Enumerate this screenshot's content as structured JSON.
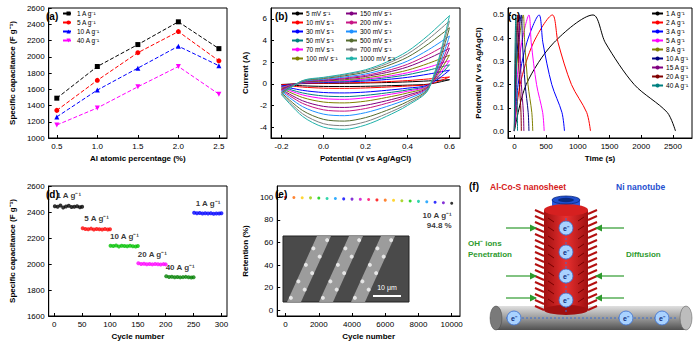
{
  "chart_data": [
    {
      "type": "line",
      "title": "(a)",
      "x_label": "Al atomic percentage (%)",
      "y_label": "Specific capacitance (F g⁻¹)",
      "x": [
        0.5,
        1,
        1.5,
        2,
        2.5
      ],
      "xlim": [
        0.4,
        2.6
      ],
      "xticks": [
        0.5,
        {
          "value": 1,
          "label": "1.0"
        },
        1.5,
        {
          "value": 2,
          "label": "2.0"
        },
        2.5
      ],
      "ylim": [
        1000,
        2600
      ],
      "yticks": [
        1000,
        1200,
        1400,
        1600,
        1800,
        2000,
        2200,
        2400,
        2600
      ],
      "grid": false,
      "legend": "upper left",
      "line_style": "dashed",
      "series": [
        {
          "name": "1 A g⁻¹",
          "color": "#000000",
          "marker": "square",
          "values": [
            1490,
            1880,
            2150,
            2430,
            2100
          ]
        },
        {
          "name": "5 A g⁻¹",
          "color": "#ff0000",
          "marker": "circle",
          "values": [
            1340,
            1710,
            2050,
            2310,
            1950
          ]
        },
        {
          "name": "10 A g⁻¹",
          "color": "#0000ff",
          "marker": "triangle",
          "values": [
            1260,
            1590,
            1860,
            2130,
            1890
          ]
        },
        {
          "name": "40 A g⁻¹",
          "color": "#ff00ff",
          "marker": "triangle-down",
          "values": [
            1160,
            1370,
            1630,
            1880,
            1540
          ]
        }
      ]
    },
    {
      "type": "line",
      "title": "(b)",
      "x_label": "Potential (V vs Ag/AgCl)",
      "y_label": "Current (A)",
      "x": [
        -0.2,
        -0.1,
        0,
        0.1,
        0.2,
        0.3,
        0.4,
        0.5,
        0.6,
        0.5,
        0.4,
        0.3,
        0.2,
        0.1,
        0,
        -0.1,
        -0.2
      ],
      "xlim": [
        -0.25,
        0.65
      ],
      "xticks": [
        -0.2,
        {
          "value": 0,
          "label": "0.0"
        },
        0.2,
        0.4,
        0.6
      ],
      "ylim": [
        -5,
        7
      ],
      "yticks": [
        -4,
        -2,
        0,
        2,
        4,
        6
      ],
      "grid": false,
      "legend": "upper left",
      "line_style": "solid",
      "series": [
        {
          "name": "5 mV s⁻¹",
          "color": "#000000",
          "values": [
            -0.06,
            0.02,
            0.04,
            0.05,
            0.08,
            0.12,
            0.18,
            0.27,
            0.38,
            -0.03,
            -0.12,
            -0.18,
            -0.23,
            -0.25,
            -0.24,
            -0.18,
            -0.06
          ]
        },
        {
          "name": "10 mV s⁻¹",
          "color": "#ff0000",
          "values": [
            -0.1,
            0.03,
            0.06,
            0.09,
            0.13,
            0.2,
            0.3,
            0.45,
            0.63,
            -0.05,
            -0.2,
            -0.3,
            -0.38,
            -0.42,
            -0.4,
            -0.3,
            -0.1
          ]
        },
        {
          "name": "30 mV s⁻¹",
          "color": "#0000ff",
          "values": [
            -0.2,
            0.06,
            0.12,
            0.18,
            0.26,
            0.4,
            0.6,
            0.9,
            1.26,
            -0.1,
            -0.4,
            -0.6,
            -0.76,
            -0.84,
            -0.8,
            -0.6,
            -0.2
          ]
        },
        {
          "name": "50 mV s⁻¹",
          "color": "#008080",
          "values": [
            -0.28,
            0.08,
            0.17,
            0.25,
            0.36,
            0.56,
            0.84,
            1.26,
            1.76,
            -0.14,
            -0.56,
            -0.84,
            -1.06,
            -1.18,
            -1.12,
            -0.84,
            -0.28
          ]
        },
        {
          "name": "70 mV s⁻¹",
          "color": "#ff00ff",
          "values": [
            -0.34,
            0.1,
            0.2,
            0.31,
            0.44,
            0.68,
            1.02,
            1.53,
            2.14,
            -0.17,
            -0.68,
            -1.02,
            -1.29,
            -1.43,
            -1.36,
            -1.02,
            -0.34
          ]
        },
        {
          "name": "100 mV s⁻¹",
          "color": "#808000",
          "values": [
            -0.42,
            0.13,
            0.25,
            0.38,
            0.55,
            0.84,
            1.26,
            1.89,
            2.65,
            -0.21,
            -0.84,
            -1.26,
            -1.6,
            -1.76,
            -1.68,
            -1.26,
            -0.42
          ]
        },
        {
          "name": "150 mV s⁻¹",
          "color": "#800080",
          "values": [
            -0.52,
            0.16,
            0.31,
            0.47,
            0.68,
            1.04,
            1.56,
            2.34,
            3.28,
            -0.26,
            -1.04,
            -1.56,
            -1.98,
            -2.18,
            -2.08,
            -1.56,
            -0.52
          ]
        },
        {
          "name": "200 mV s⁻¹",
          "color": "#c71585",
          "values": [
            -0.6,
            0.18,
            0.36,
            0.54,
            0.78,
            1.2,
            1.8,
            2.7,
            3.78,
            -0.3,
            -1.2,
            -1.8,
            -2.28,
            -2.52,
            -2.4,
            -1.8,
            -0.6
          ]
        },
        {
          "name": "300 mV s⁻¹",
          "color": "#1e90ff",
          "values": [
            -0.7,
            0.21,
            0.42,
            0.63,
            0.91,
            1.4,
            2.1,
            3.15,
            4.41,
            -0.35,
            -1.4,
            -2.1,
            -2.66,
            -2.94,
            -2.8,
            -2.1,
            -0.7
          ]
        },
        {
          "name": "500 mV s⁻¹",
          "color": "#556b2f",
          "values": [
            -0.82,
            0.25,
            0.49,
            0.74,
            1.07,
            1.64,
            2.46,
            3.69,
            5.17,
            -0.41,
            -1.64,
            -2.46,
            -3.12,
            -3.44,
            -3.28,
            -2.46,
            -0.82
          ]
        },
        {
          "name": "700 mV s⁻¹",
          "color": "#808080",
          "values": [
            -0.92,
            0.28,
            0.55,
            0.83,
            1.2,
            1.84,
            2.76,
            4.14,
            5.8,
            -0.46,
            -1.84,
            -2.76,
            -3.5,
            -3.86,
            -3.68,
            -2.76,
            -0.92
          ]
        },
        {
          "name": "1000 mV s⁻¹",
          "color": "#20b2aa",
          "values": [
            -1.0,
            0.3,
            0.6,
            0.9,
            1.3,
            2.0,
            3.0,
            4.5,
            6.3,
            -0.5,
            -2.0,
            -3.0,
            -3.8,
            -4.2,
            -4.0,
            -3.0,
            -1.0
          ]
        }
      ]
    },
    {
      "type": "line",
      "title": "(c)",
      "x_label": "Time (s)",
      "y_label": "Potential (V vs Ag/AgCl)",
      "xlim": [
        -100,
        2800
      ],
      "xticks": [
        0,
        500,
        1000,
        1500,
        2000,
        2500
      ],
      "ylim": [
        -0.03,
        0.53
      ],
      "yticks": [
        {
          "value": 0,
          "label": "0.0"
        },
        0.1,
        0.2,
        0.3,
        0.4,
        0.5
      ],
      "grid": false,
      "legend": "upper right",
      "line_style": "solid",
      "series": [
        {
          "name": "1 A g⁻¹",
          "color": "#000000",
          "x": [
            0,
            186,
            620,
            1240,
            1435,
            1890,
            2410,
            2540
          ],
          "values": [
            0,
            0.2,
            0.38,
            0.5,
            0.38,
            0.2,
            0.08,
            0
          ]
        },
        {
          "name": "2 A g⁻¹",
          "color": "#ff0000",
          "x": [
            0,
            90,
            300,
            600,
            690,
            900,
            1140,
            1200
          ],
          "values": [
            0,
            0.2,
            0.38,
            0.5,
            0.38,
            0.2,
            0.08,
            0
          ]
        },
        {
          "name": "3 A g⁻¹",
          "color": "#0000ff",
          "x": [
            0,
            59,
            195,
            390,
            450,
            590,
            750,
            790
          ],
          "values": [
            0,
            0.2,
            0.38,
            0.5,
            0.38,
            0.2,
            0.08,
            0
          ]
        },
        {
          "name": "5 A g⁻¹",
          "color": "#ff00ff",
          "x": [
            0,
            35,
            115,
            230,
            266,
            350,
            446,
            470
          ],
          "values": [
            0,
            0.2,
            0.38,
            0.5,
            0.38,
            0.2,
            0.08,
            0
          ]
        },
        {
          "name": "8 A g⁻¹",
          "color": "#808000",
          "x": [
            0,
            21,
            70,
            140,
            163,
            215,
            275,
            290
          ],
          "values": [
            0,
            0.2,
            0.38,
            0.5,
            0.38,
            0.2,
            0.08,
            0
          ]
        },
        {
          "name": "10 A g⁻¹",
          "color": "#000080",
          "x": [
            0,
            17,
            55,
            110,
            128,
            170,
            218,
            230
          ],
          "values": [
            0,
            0.2,
            0.38,
            0.5,
            0.38,
            0.2,
            0.08,
            0
          ]
        },
        {
          "name": "15 A g⁻¹",
          "color": "#800080",
          "x": [
            0,
            11,
            36,
            72,
            84,
            111,
            142,
            150
          ],
          "values": [
            0,
            0.2,
            0.38,
            0.5,
            0.38,
            0.2,
            0.08,
            0
          ]
        },
        {
          "name": "20 A g⁻¹",
          "color": "#800000",
          "x": [
            0,
            8,
            26,
            52,
            61,
            81,
            104,
            110
          ],
          "values": [
            0,
            0.2,
            0.38,
            0.5,
            0.38,
            0.2,
            0.08,
            0
          ]
        },
        {
          "name": "40 A g⁻¹",
          "color": "#008080",
          "x": [
            0,
            4,
            12,
            24,
            28,
            37,
            47,
            50
          ],
          "values": [
            0,
            0.2,
            0.38,
            0.5,
            0.38,
            0.2,
            0.08,
            0
          ]
        }
      ]
    },
    {
      "type": "scatter",
      "title": "(d)",
      "x_label": "Cycle number",
      "y_label": "Specific capacitance (F g⁻¹)",
      "xlim": [
        -10,
        310
      ],
      "xticks": [
        0,
        50,
        100,
        150,
        200,
        250,
        300
      ],
      "ylim": [
        1600,
        2600
      ],
      "yticks": [
        1600,
        1800,
        2000,
        2200,
        2400,
        2600
      ],
      "grid": false,
      "marker": "circle",
      "series": [
        {
          "name": "1 A g⁻¹",
          "color": "#000000",
          "x": [
            1,
            6,
            11,
            16,
            21,
            26,
            31,
            36,
            41,
            46,
            50
          ],
          "values": [
            2445,
            2440,
            2450,
            2435,
            2442,
            2448,
            2438,
            2440,
            2445,
            2436,
            2440
          ]
        },
        {
          "name": "5 A g⁻¹",
          "color": "#ff0000",
          "x": [
            51,
            56,
            61,
            66,
            71,
            76,
            81,
            86,
            91,
            96,
            100
          ],
          "values": [
            2275,
            2270,
            2268,
            2272,
            2265,
            2270,
            2268,
            2266,
            2270,
            2265,
            2268
          ]
        },
        {
          "name": "10 A g⁻¹",
          "color": "#00c000",
          "x": [
            101,
            106,
            111,
            116,
            121,
            126,
            131,
            136,
            141,
            146,
            150
          ],
          "values": [
            2140,
            2138,
            2142,
            2135,
            2140,
            2138,
            2136,
            2140,
            2137,
            2135,
            2138
          ]
        },
        {
          "name": "20 A g⁻¹",
          "color": "#ff00ff",
          "x": [
            151,
            156,
            161,
            166,
            171,
            176,
            181,
            186,
            191,
            196,
            200
          ],
          "values": [
            2005,
            2000,
            2002,
            1998,
            2000,
            1997,
            2000,
            1998,
            1996,
            1999,
            1997
          ]
        },
        {
          "name": "40 A g⁻¹",
          "color": "#008000",
          "x": [
            201,
            206,
            211,
            216,
            221,
            226,
            231,
            236,
            241,
            246,
            250
          ],
          "values": [
            1905,
            1900,
            1902,
            1898,
            1900,
            1897,
            1899,
            1901,
            1898,
            1896,
            1898
          ]
        },
        {
          "name": "1 A g⁻¹",
          "color": "#0000ff",
          "x": [
            251,
            256,
            261,
            266,
            271,
            276,
            281,
            286,
            291,
            296,
            300
          ],
          "values": [
            2395,
            2390,
            2392,
            2388,
            2391,
            2389,
            2390,
            2387,
            2389,
            2388,
            2390
          ]
        }
      ]
    },
    {
      "type": "scatter",
      "title": "(e)",
      "x_label": "Cycle number",
      "y_label": "Retention (%)",
      "x": [
        0,
        500,
        1000,
        1500,
        2000,
        2500,
        3000,
        3500,
        4000,
        4500,
        5000,
        5500,
        6000,
        6500,
        7000,
        7500,
        8000,
        8500,
        9000,
        9500,
        10000
      ],
      "xlim": [
        -500,
        10500
      ],
      "xticks": [
        0,
        2000,
        4000,
        6000,
        8000,
        10000
      ],
      "ylim": [
        -5,
        110
      ],
      "yticks": [
        0,
        20,
        40,
        60,
        80,
        100
      ],
      "grid": false,
      "marker": "circle",
      "annotation": "10 A g⁻¹",
      "inset": {
        "scale_bar": "10 μm"
      },
      "series": [
        {
          "colors": [
            "#ff0000",
            "#ff6600",
            "#ffcc00",
            "#99cc00",
            "#00cc00",
            "#00cc99",
            "#0099ff",
            "#0000ff",
            "#6600cc",
            "#cc00cc",
            "#ff0066",
            "#ff0000",
            "#ff6600",
            "#ffcc00",
            "#99cc00",
            "#00cc00",
            "#00cc99",
            "#0099ff",
            "#0000ff",
            "#6600cc",
            "#000000"
          ],
          "values": [
            100,
            99.8,
            99.6,
            99.5,
            99.3,
            99.0,
            98.9,
            98.6,
            98.4,
            98.2,
            98.0,
            97.7,
            97.5,
            97.3,
            97.0,
            96.7,
            96.4,
            96.0,
            95.6,
            95.2,
            94.8
          ],
          "value_labels": [
            null,
            null,
            null,
            null,
            null,
            null,
            null,
            null,
            null,
            null,
            null,
            null,
            null,
            null,
            null,
            null,
            null,
            null,
            null,
            null,
            "94.8 %"
          ]
        }
      ]
    }
  ],
  "diagram": {
    "title": "(f)",
    "labels": {
      "nanosheet": "Al-Co-S nanosheet",
      "nanotube": "Ni nanotube",
      "ions": "OH⁻ ions",
      "penetration": "Penetration",
      "diffusion": "Diffusion",
      "electron": "e⁻"
    }
  }
}
